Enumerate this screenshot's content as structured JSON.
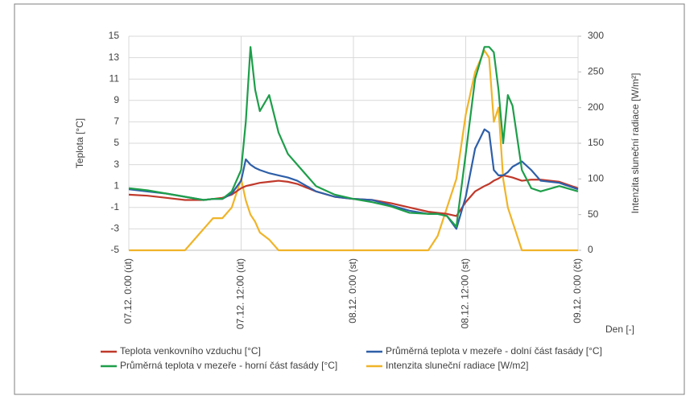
{
  "chart_data": {
    "type": "line",
    "y_label": "Teplota [°C]",
    "y2_label": "Intenzita sluneční radiace [W/m²]",
    "x_label": "Den [-]",
    "xlim": [
      0,
      48
    ],
    "xticks": [
      {
        "value": 0,
        "label": "07.12. 0:00 (út)"
      },
      {
        "value": 12,
        "label": "07.12. 12:00 (út)"
      },
      {
        "value": 24,
        "label": "08.12. 0:00 (st)"
      },
      {
        "value": 36,
        "label": "08.12. 12:00 (st)"
      },
      {
        "value": 48,
        "label": "09.12. 0:00 (čt)"
      }
    ],
    "ylim": [
      -5,
      15
    ],
    "yticks": [
      -5,
      -3,
      -1,
      1,
      3,
      5,
      7,
      9,
      11,
      13,
      15
    ],
    "y2lim": [
      0,
      300
    ],
    "y2ticks": [
      0,
      50,
      100,
      150,
      200,
      250,
      300
    ],
    "grid": true,
    "legend": "bottom",
    "x": [
      0,
      2,
      4,
      6,
      8,
      9,
      10,
      11,
      12,
      12.5,
      13,
      13.5,
      14,
      15,
      16,
      17,
      18,
      20,
      22,
      24,
      26,
      28,
      30,
      32,
      33,
      34,
      35,
      36,
      37,
      38,
      38.5,
      39,
      39.5,
      40,
      40.5,
      41,
      42,
      43,
      44,
      46,
      48
    ],
    "series": [
      {
        "name": "Teplota venkovního vzduchu [°C]",
        "color": "#c0392b",
        "values": [
          0.2,
          0.1,
          -0.1,
          -0.3,
          -0.3,
          -0.2,
          -0.1,
          0.2,
          0.8,
          1.0,
          1.1,
          1.2,
          1.3,
          1.4,
          1.5,
          1.4,
          1.2,
          0.5,
          0,
          -0.2,
          -0.3,
          -0.6,
          -1.0,
          -1.4,
          -1.5,
          -1.6,
          -1.8,
          -0.5,
          0.5,
          1.0,
          1.2,
          1.5,
          1.7,
          2.0,
          1.9,
          1.8,
          1.5,
          1.6,
          1.6,
          1.4,
          0.8
        ]
      },
      {
        "name": "Průměrná teplota v mezeře - dolní část fasády [°C]",
        "color": "#2e5fa8",
        "values": [
          0.7,
          0.5,
          0.3,
          0,
          -0.3,
          -0.2,
          -0.2,
          0.3,
          1.5,
          3.5,
          3.0,
          2.7,
          2.5,
          2.2,
          2.0,
          1.8,
          1.5,
          0.5,
          0,
          -0.2,
          -0.3,
          -0.8,
          -1.3,
          -1.6,
          -1.6,
          -1.8,
          -3.0,
          0,
          4.5,
          6.3,
          6.0,
          2.5,
          2.0,
          2.0,
          2.3,
          2.8,
          3.3,
          2.5,
          1.5,
          1.3,
          0.7
        ]
      },
      {
        "name": "Průměrná teplota v mezeře - horní část fasády [°C]",
        "color": "#1e9e4a",
        "values": [
          0.8,
          0.6,
          0.3,
          0,
          -0.3,
          -0.2,
          -0.2,
          0.5,
          2.5,
          7,
          14,
          10,
          8,
          9.5,
          6,
          4,
          3,
          1,
          0.2,
          -0.2,
          -0.5,
          -0.9,
          -1.5,
          -1.6,
          -1.6,
          -1.8,
          -2.8,
          4,
          11,
          14,
          14,
          13.5,
          10,
          5,
          9.5,
          8.5,
          2.5,
          0.8,
          0.5,
          1,
          0.5
        ]
      },
      {
        "name": "Intenzita sluneční radiace [W/m2]",
        "color": "#f0b429",
        "axis": "y2",
        "values": [
          0,
          0,
          0,
          0,
          30,
          45,
          45,
          60,
          100,
          70,
          50,
          40,
          25,
          15,
          0,
          0,
          0,
          0,
          0,
          0,
          0,
          0,
          0,
          0,
          20,
          60,
          100,
          190,
          250,
          280,
          270,
          180,
          200,
          100,
          60,
          40,
          0,
          0,
          0,
          0,
          0
        ]
      }
    ]
  }
}
